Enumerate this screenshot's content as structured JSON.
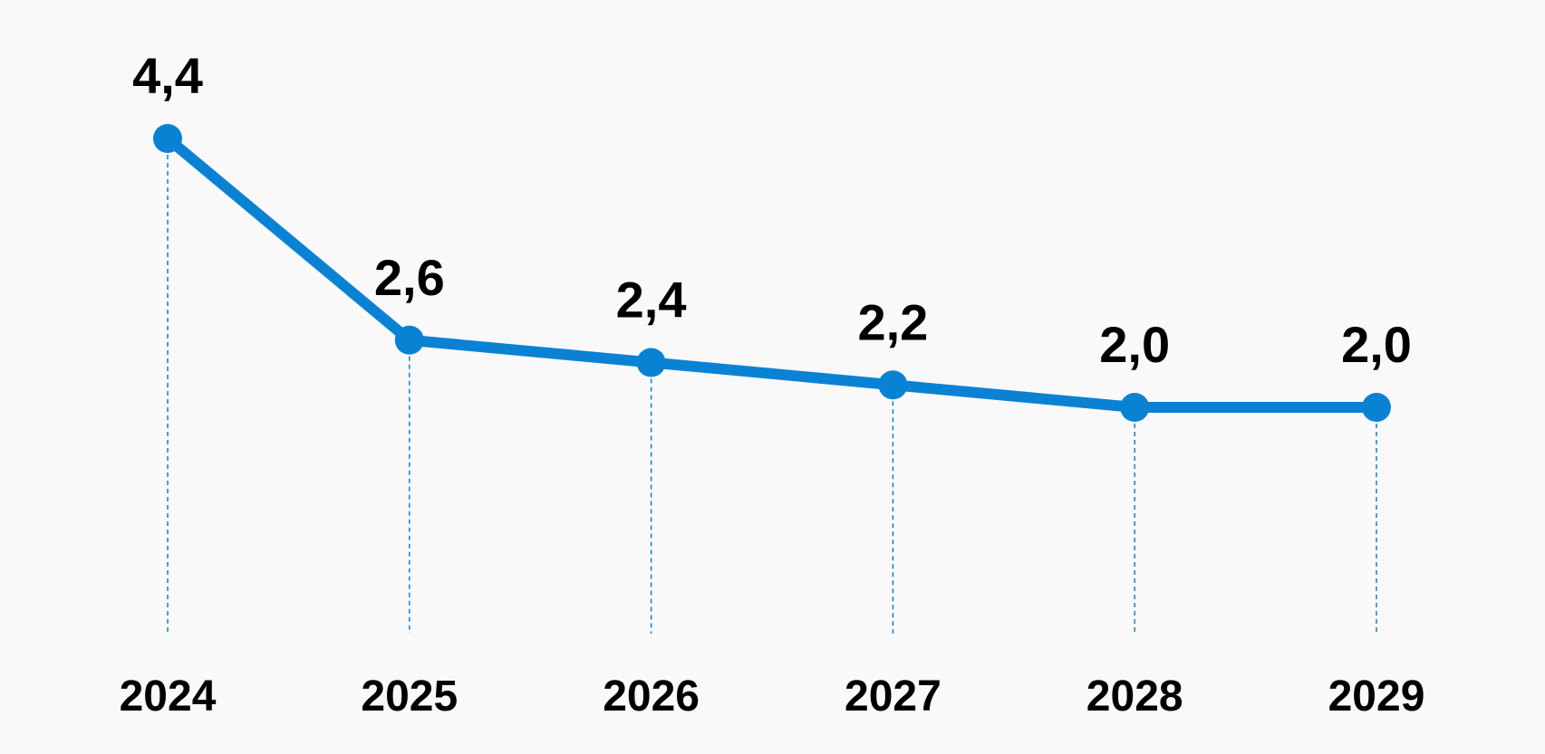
{
  "chart_data": {
    "type": "line",
    "title": "",
    "xlabel": "",
    "ylabel": "",
    "categories": [
      "2024",
      "2025",
      "2026",
      "2027",
      "2028",
      "2029"
    ],
    "series": [
      {
        "values": [
          4.4,
          2.6,
          2.4,
          2.2,
          2.0,
          2.0
        ],
        "value_labels": [
          "4,4",
          "2,6",
          "2,4",
          "2,2",
          "2,0",
          "2,0"
        ],
        "color": "#0a82d4"
      }
    ],
    "ylim": [
      0,
      4.4
    ],
    "grid": false,
    "legend": "none",
    "drop_lines": true,
    "drop_line_color": "#0a82d4"
  }
}
